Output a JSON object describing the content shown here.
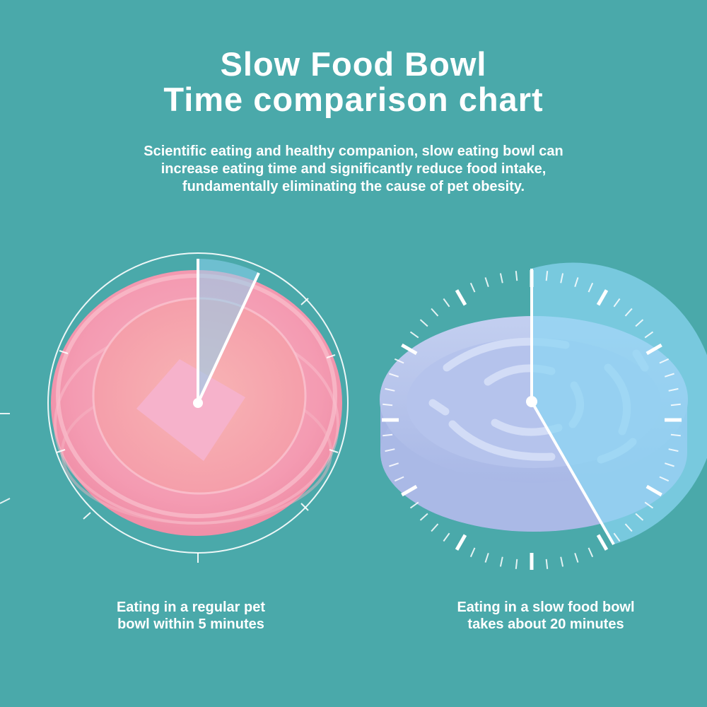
{
  "header": {
    "title_line1": "Slow Food Bowl",
    "title_line2": "Time comparison chart",
    "description_line1": "Scientific eating and healthy companion, slow eating bowl can",
    "description_line2": "increase eating time and significantly reduce food intake,",
    "description_line3": "fundamentally eliminating the cause of pet obesity."
  },
  "comparison": {
    "regular": {
      "caption_line1": "Eating in a regular pet",
      "caption_line2": "bowl within 5 minutes",
      "minutes": 5
    },
    "slow": {
      "caption_line1": "Eating in a slow food bowl",
      "caption_line2": "takes about 20 minutes",
      "minutes": 20
    }
  },
  "colors": {
    "background": "#4aa9aa",
    "regular_bowl": "#f4a0b4",
    "slow_bowl": "#b8c6ec",
    "highlight_sector": "#89d4ef"
  }
}
